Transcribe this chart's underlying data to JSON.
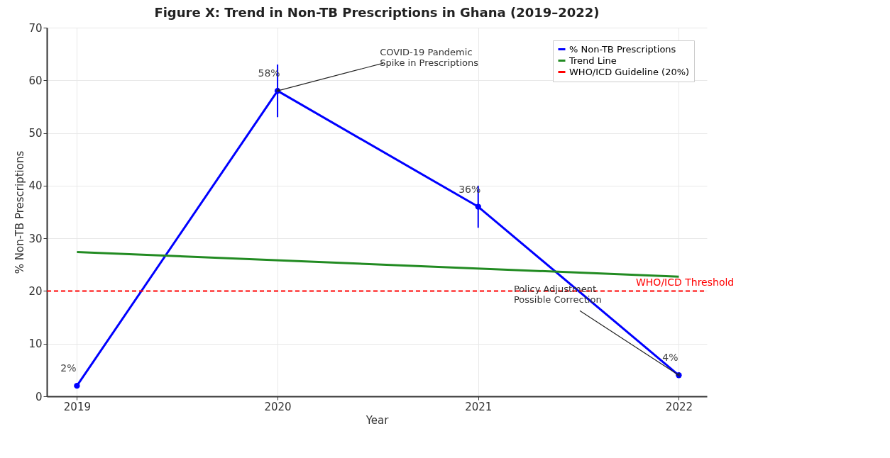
{
  "chart_data": {
    "type": "line",
    "title": "Figure X: Trend in Non-TB Prescriptions in Ghana (2019–2022)",
    "xlabel": "Year",
    "ylabel": "% Non-TB Prescriptions",
    "x": [
      2019,
      2020,
      2021,
      2022
    ],
    "xlim": [
      2018.85,
      2022.14
    ],
    "xticks": [
      2019,
      2020,
      2021,
      2022
    ],
    "ylim": [
      0,
      70
    ],
    "yticks": [
      0,
      10,
      20,
      30,
      40,
      50,
      60,
      70
    ],
    "series": [
      {
        "name": "% Non-TB Prescriptions",
        "color": "#0000ff",
        "values": [
          2,
          58,
          36,
          4
        ],
        "errors": [
          null,
          5,
          4,
          null
        ],
        "value_labels": [
          "2%",
          "58%",
          "36%",
          "4%"
        ],
        "marker": "circle"
      },
      {
        "name": "Trend Line",
        "color": "#228b22",
        "type": "line",
        "x": [
          2019,
          2022
        ],
        "values": [
          27.4,
          22.7
        ]
      }
    ],
    "ref_lines": [
      {
        "axis": "y",
        "value": 20,
        "label": "WHO/ICD Guideline (20%)",
        "color": "#ff0000",
        "line_style": "dashed"
      }
    ],
    "annotations": [
      {
        "text": "COVID-19 Pandemic\nSpike in Prescriptions",
        "x": 2020,
        "y": 58
      },
      {
        "text": "Policy Adjustment\nPossible Correction",
        "x": 2022,
        "y": 4
      },
      "WHO/ICD Threshold"
    ],
    "grid": true,
    "legend": "top right"
  }
}
